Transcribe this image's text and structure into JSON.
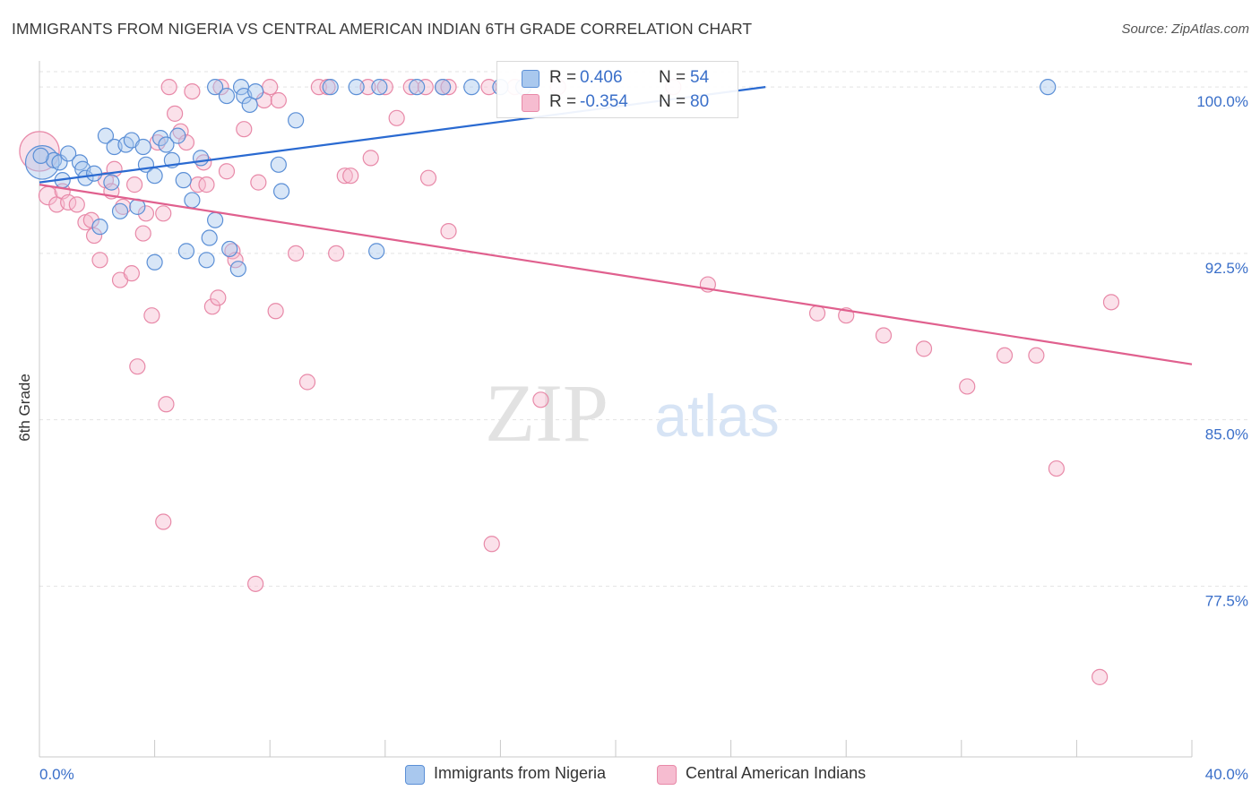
{
  "title": "IMMIGRANTS FROM NIGERIA VS CENTRAL AMERICAN INDIAN 6TH GRADE CORRELATION CHART",
  "source": "Source: ZipAtlas.com",
  "watermark": {
    "zip": "ZIP",
    "atlas": "atlas"
  },
  "colors": {
    "blue_fill": "#a9c8ee",
    "blue_stroke": "#5b8fd6",
    "blue_line": "#2a6ad1",
    "pink_fill": "#f6bcd0",
    "pink_stroke": "#e889a8",
    "pink_line": "#e0608e",
    "tick_label": "#3a6fc9",
    "grid": "#e3e3e3"
  },
  "legend_top": {
    "rows": [
      {
        "r_label": "R =",
        "r_value": "0.406",
        "n_label": "N =",
        "n_value": "54"
      },
      {
        "r_label": "R =",
        "r_value": "-0.354",
        "n_label": "N =",
        "n_value": "80"
      }
    ]
  },
  "legend_bottom": [
    "Immigrants from Nigeria",
    "Central American Indians"
  ],
  "chart_data": {
    "type": "scatter",
    "title": "IMMIGRANTS FROM NIGERIA VS CENTRAL AMERICAN INDIAN 6TH GRADE CORRELATION CHART",
    "xlabel": "",
    "ylabel": "6th Grade",
    "xlim": [
      0,
      40
    ],
    "ylim": [
      69.8,
      101.5
    ],
    "x_tick_labels": [
      "0.0%",
      "40.0%"
    ],
    "y_ticks": [
      100,
      92.5,
      85,
      77.5
    ],
    "y_tick_labels": [
      "100.0%",
      "92.5%",
      "85.0%",
      "77.5%"
    ],
    "grid": true,
    "series": [
      {
        "name": "Immigrants from Nigeria",
        "color": "blue",
        "r": 0.406,
        "n": 54,
        "trend": {
          "x": [
            0,
            25.2
          ],
          "y": [
            95.7,
            100.0
          ]
        },
        "points": [
          [
            0.1,
            96.6,
            2.2
          ],
          [
            0.5,
            96.7,
            1
          ],
          [
            0.7,
            96.6,
            1
          ],
          [
            0.8,
            95.8,
            1
          ],
          [
            1.0,
            97.0,
            1
          ],
          [
            1.4,
            96.6,
            1
          ],
          [
            1.5,
            96.3,
            1
          ],
          [
            1.6,
            95.9,
            1
          ],
          [
            1.9,
            96.1,
            1
          ],
          [
            2.1,
            93.7,
            1
          ],
          [
            2.3,
            97.8,
            1
          ],
          [
            2.5,
            95.7,
            1
          ],
          [
            2.6,
            97.3,
            1
          ],
          [
            2.8,
            94.4,
            1
          ],
          [
            3.0,
            97.4,
            1
          ],
          [
            3.2,
            97.6,
            1
          ],
          [
            3.4,
            94.6,
            1
          ],
          [
            3.6,
            97.3,
            1
          ],
          [
            3.7,
            96.5,
            1
          ],
          [
            4.0,
            96.0,
            1
          ],
          [
            4.0,
            92.1,
            1
          ],
          [
            4.2,
            97.7,
            1
          ],
          [
            4.4,
            97.4,
            1
          ],
          [
            4.6,
            96.7,
            1
          ],
          [
            4.8,
            97.8,
            1
          ],
          [
            5.0,
            95.8,
            1
          ],
          [
            5.1,
            92.6,
            1
          ],
          [
            5.3,
            94.9,
            1
          ],
          [
            5.6,
            96.8,
            1
          ],
          [
            5.8,
            92.2,
            1
          ],
          [
            5.9,
            93.2,
            1
          ],
          [
            6.1,
            94.0,
            1
          ],
          [
            6.1,
            100.0,
            1
          ],
          [
            6.5,
            99.6,
            1
          ],
          [
            6.6,
            92.7,
            1
          ],
          [
            6.9,
            91.8,
            1
          ],
          [
            7.0,
            100.0,
            1
          ],
          [
            7.1,
            99.6,
            1
          ],
          [
            7.3,
            99.2,
            1
          ],
          [
            7.5,
            99.8,
            1
          ],
          [
            8.3,
            96.5,
            1
          ],
          [
            8.4,
            95.3,
            1
          ],
          [
            8.9,
            98.5,
            1
          ],
          [
            10.1,
            100.0,
            1
          ],
          [
            11.0,
            100.0,
            1
          ],
          [
            11.7,
            92.6,
            1
          ],
          [
            11.8,
            100.0,
            1
          ],
          [
            13.1,
            100.0,
            1
          ],
          [
            14.0,
            100.0,
            1
          ],
          [
            15.0,
            100.0,
            1
          ],
          [
            16.0,
            100.0,
            1
          ],
          [
            16.8,
            100.0,
            1
          ],
          [
            35.0,
            100.0,
            1
          ],
          [
            0.05,
            96.9,
            1
          ]
        ]
      },
      {
        "name": "Central American Indians",
        "color": "pink",
        "r": -0.354,
        "n": 80,
        "trend": {
          "x": [
            0,
            40
          ],
          "y": [
            95.6,
            87.5
          ]
        },
        "points": [
          [
            0.0,
            97.1,
            2.6
          ],
          [
            0.3,
            95.1,
            1.2
          ],
          [
            0.6,
            94.7,
            1
          ],
          [
            0.8,
            95.3,
            1
          ],
          [
            1.0,
            94.8,
            1
          ],
          [
            1.3,
            94.7,
            1
          ],
          [
            1.6,
            93.9,
            1
          ],
          [
            1.8,
            94.0,
            1
          ],
          [
            1.9,
            93.3,
            1
          ],
          [
            2.1,
            92.2,
            1
          ],
          [
            2.3,
            95.8,
            1
          ],
          [
            2.5,
            95.3,
            1
          ],
          [
            2.6,
            96.3,
            1
          ],
          [
            2.8,
            91.3,
            1
          ],
          [
            2.9,
            94.6,
            1
          ],
          [
            3.2,
            91.6,
            1
          ],
          [
            3.3,
            95.6,
            1
          ],
          [
            3.4,
            87.4,
            1
          ],
          [
            3.6,
            93.4,
            1
          ],
          [
            3.7,
            94.3,
            1
          ],
          [
            3.9,
            89.7,
            1
          ],
          [
            4.1,
            97.5,
            1
          ],
          [
            4.3,
            94.3,
            1
          ],
          [
            4.4,
            85.7,
            1
          ],
          [
            4.5,
            100.0,
            1
          ],
          [
            4.7,
            98.8,
            1
          ],
          [
            4.9,
            98.0,
            1
          ],
          [
            5.1,
            97.5,
            1
          ],
          [
            5.3,
            99.8,
            1
          ],
          [
            5.5,
            95.6,
            1
          ],
          [
            5.7,
            96.6,
            1
          ],
          [
            5.8,
            95.6,
            1
          ],
          [
            6.0,
            90.1,
            1
          ],
          [
            6.2,
            90.5,
            1
          ],
          [
            6.5,
            96.2,
            1
          ],
          [
            6.7,
            92.6,
            1
          ],
          [
            6.8,
            92.2,
            1
          ],
          [
            7.1,
            98.1,
            1
          ],
          [
            7.5,
            77.6,
            1
          ],
          [
            7.6,
            95.7,
            1
          ],
          [
            7.8,
            99.4,
            1
          ],
          [
            8.0,
            100.0,
            1
          ],
          [
            8.3,
            99.4,
            1
          ],
          [
            8.9,
            92.5,
            1
          ],
          [
            9.3,
            86.7,
            1
          ],
          [
            9.7,
            100.0,
            1
          ],
          [
            10.0,
            100.0,
            1
          ],
          [
            10.3,
            92.5,
            1
          ],
          [
            10.6,
            96.0,
            1
          ],
          [
            10.8,
            96.0,
            1
          ],
          [
            11.4,
            100.0,
            1
          ],
          [
            11.5,
            96.8,
            1
          ],
          [
            12.0,
            100.0,
            1
          ],
          [
            12.4,
            98.6,
            1
          ],
          [
            12.9,
            100.0,
            1
          ],
          [
            13.4,
            100.0,
            1
          ],
          [
            13.5,
            95.9,
            1
          ],
          [
            14.0,
            100.0,
            1
          ],
          [
            14.2,
            93.5,
            1
          ],
          [
            15.6,
            100.0,
            1
          ],
          [
            15.7,
            79.4,
            1
          ],
          [
            16.5,
            100.0,
            1
          ],
          [
            17.4,
            85.9,
            1
          ],
          [
            18.0,
            100.0,
            1
          ],
          [
            22.0,
            100.0,
            1
          ],
          [
            23.2,
            91.1,
            1
          ],
          [
            27.0,
            89.8,
            1
          ],
          [
            28.0,
            89.7,
            1
          ],
          [
            29.3,
            88.8,
            1
          ],
          [
            30.7,
            88.2,
            1
          ],
          [
            32.2,
            86.5,
            1
          ],
          [
            33.5,
            87.9,
            1
          ],
          [
            34.6,
            87.9,
            1
          ],
          [
            36.8,
            73.4,
            1
          ],
          [
            37.2,
            90.3,
            1
          ],
          [
            35.3,
            82.8,
            1
          ],
          [
            14.2,
            100.0,
            1
          ],
          [
            6.3,
            100.0,
            1
          ],
          [
            4.3,
            80.4,
            1
          ],
          [
            8.2,
            89.9,
            1
          ]
        ]
      }
    ]
  }
}
